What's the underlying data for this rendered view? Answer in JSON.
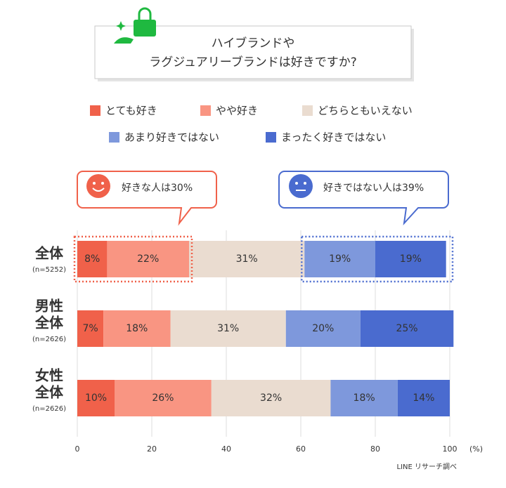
{
  "chart_data": {
    "type": "stacked-bar-horizontal",
    "title_lines": [
      "ハイブランドや",
      "ラグジュアリーブランドは好きですか?"
    ],
    "categories": [
      [
        "全体"
      ],
      [
        "男性",
        "全体"
      ],
      [
        "女性",
        "全体"
      ]
    ],
    "sample_sizes": [
      "(n=5252)",
      "(n=2626)",
      "(n=2626)"
    ],
    "series": [
      {
        "name": "とても好き",
        "color": "#f0614a",
        "label_color": "#ffffff",
        "values": [
          8,
          7,
          10
        ],
        "value_labels": [
          "8%",
          "7%",
          "10%"
        ]
      },
      {
        "name": "やや好き",
        "color": "#f99582",
        "label_color": "#ffffff",
        "values": [
          22,
          18,
          26
        ],
        "value_labels": [
          "22%",
          "18%",
          "26%"
        ]
      },
      {
        "name": "どちらともいえない",
        "color": "#eadcd0",
        "label_color": "#777777",
        "values": [
          31,
          31,
          32
        ],
        "value_labels": [
          "31%",
          "31%",
          "32%"
        ]
      },
      {
        "name": "あまり好きではない",
        "color": "#7e98dc",
        "label_color": "#ffffff",
        "values": [
          19,
          20,
          18
        ],
        "value_labels": [
          "19%",
          "20%",
          "18%"
        ]
      },
      {
        "name": "まったく好きではない",
        "color": "#4a6bcf",
        "label_color": "#ffffff",
        "values": [
          19,
          25,
          14
        ],
        "value_labels": [
          "19%",
          "25%",
          "14%"
        ]
      }
    ],
    "xlim": [
      0,
      100
    ],
    "xticks": [
      0,
      20,
      40,
      60,
      80,
      100
    ],
    "x_unit": "(%)",
    "grid": true,
    "annotations": [
      "好きな人は30%",
      "好きではない人は39%"
    ],
    "source": "LINE リサーチ調べ"
  }
}
